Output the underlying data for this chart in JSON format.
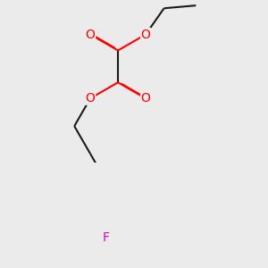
{
  "bg_color": "#ebebeb",
  "bond_color": "#1a1a1a",
  "oxygen_color": "#ff0000",
  "fluorine_color": "#cc00cc",
  "lw": 1.5,
  "dbo": 0.018,
  "figsize": [
    3.0,
    3.0
  ],
  "dpi": 100,
  "xlim": [
    -1.5,
    2.5
  ],
  "ylim": [
    -3.5,
    1.5
  ]
}
